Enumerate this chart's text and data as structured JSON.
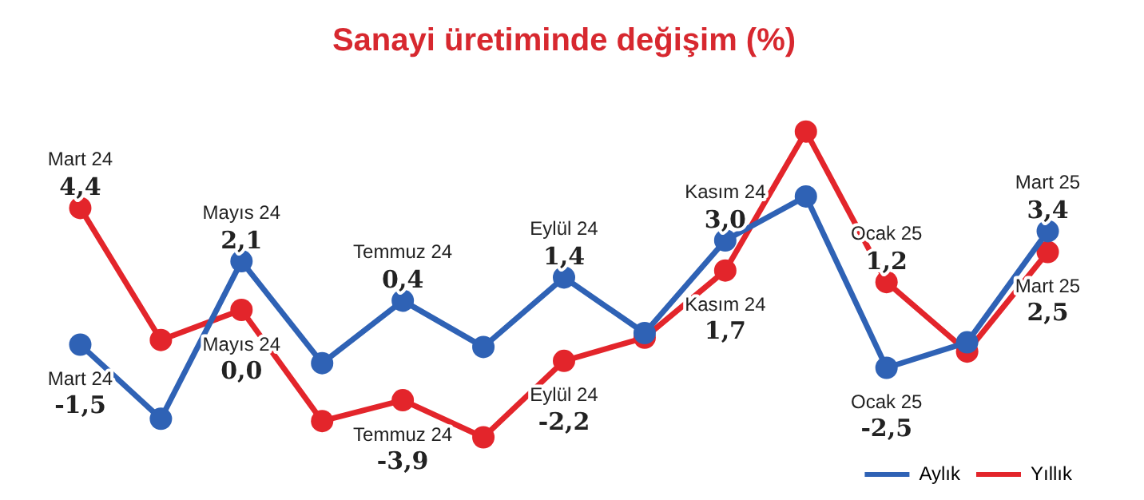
{
  "chart_data": {
    "type": "line",
    "title": "Sanayi üretiminde değişim (%)",
    "categories": [
      "Mart 24",
      null,
      "Mayıs 24",
      null,
      "Temmuz 24",
      null,
      "Eylül 24",
      null,
      "Kasım 24",
      null,
      "Ocak 25",
      null,
      "Mart 25"
    ],
    "series": [
      {
        "name": "Aylık",
        "color": "#2f62b5",
        "values": [
          -1.5,
          -4.7,
          2.1,
          -2.3,
          0.4,
          -1.6,
          1.4,
          -1.0,
          3.0,
          4.9,
          -2.5,
          -1.4,
          3.4
        ],
        "value_labels": [
          "-1,5",
          null,
          "2,1",
          null,
          "0,4",
          null,
          "1,4",
          null,
          "3,0",
          null,
          "-2,5",
          null,
          "3,4"
        ]
      },
      {
        "name": "Yıllık",
        "color": "#e3252b",
        "values": [
          4.4,
          -1.3,
          0.0,
          -4.8,
          -3.9,
          -5.5,
          -2.2,
          -1.2,
          1.7,
          7.7,
          1.2,
          -1.8,
          2.5
        ],
        "value_labels": [
          "4,4",
          null,
          "0,0",
          null,
          "-3,9",
          null,
          "-2,2",
          null,
          "1,7",
          null,
          "1,2",
          null,
          "2,5"
        ]
      }
    ],
    "legend": "bottom right",
    "marker": "circle",
    "line_style": "solid"
  }
}
